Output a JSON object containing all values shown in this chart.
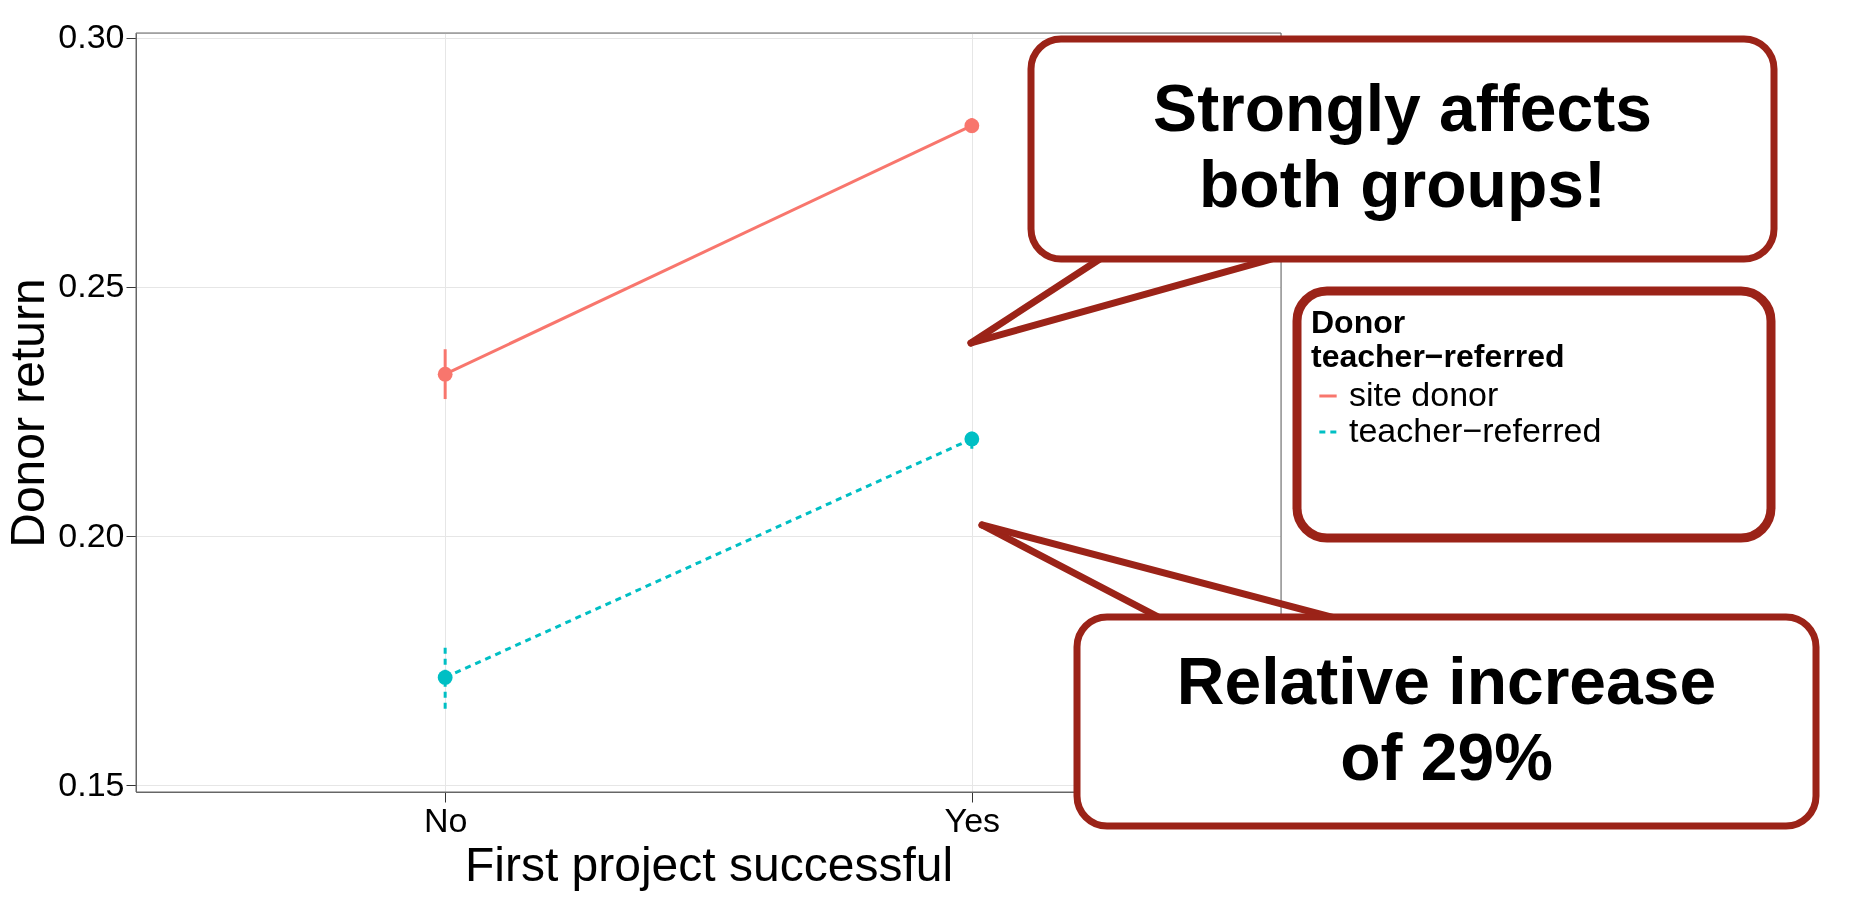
{
  "chart_data": {
    "type": "line",
    "xlabel": "First project successful",
    "ylabel": "Donor return",
    "legend_title": "Donor\nteacher−referred",
    "categories": [
      "No",
      "Yes"
    ],
    "series": [
      {
        "name": "site donor",
        "color": "#f8766d",
        "line_style": "solid",
        "values": [
          0.2325,
          0.2824
        ],
        "errors": [
          0.005,
          0.0015
        ]
      },
      {
        "name": "teacher−referred",
        "color": "#00bfc4",
        "line_style": "dashed",
        "values": [
          0.1716,
          0.2195
        ],
        "errors": [
          0.0063,
          0.002
        ]
      }
    ],
    "ylim": [
      0.1486,
      0.301
    ],
    "yticks": [
      {
        "value": 0.15,
        "label": "0.15"
      },
      {
        "value": 0.2,
        "label": "0.20"
      },
      {
        "value": 0.25,
        "label": "0.25"
      },
      {
        "value": 0.3,
        "label": "0.30"
      }
    ],
    "grid": true,
    "legend": "right",
    "marker": "circle",
    "annotations": [
      "Strongly affects\nboth groups!",
      "Relative increase\nof 29%"
    ]
  }
}
